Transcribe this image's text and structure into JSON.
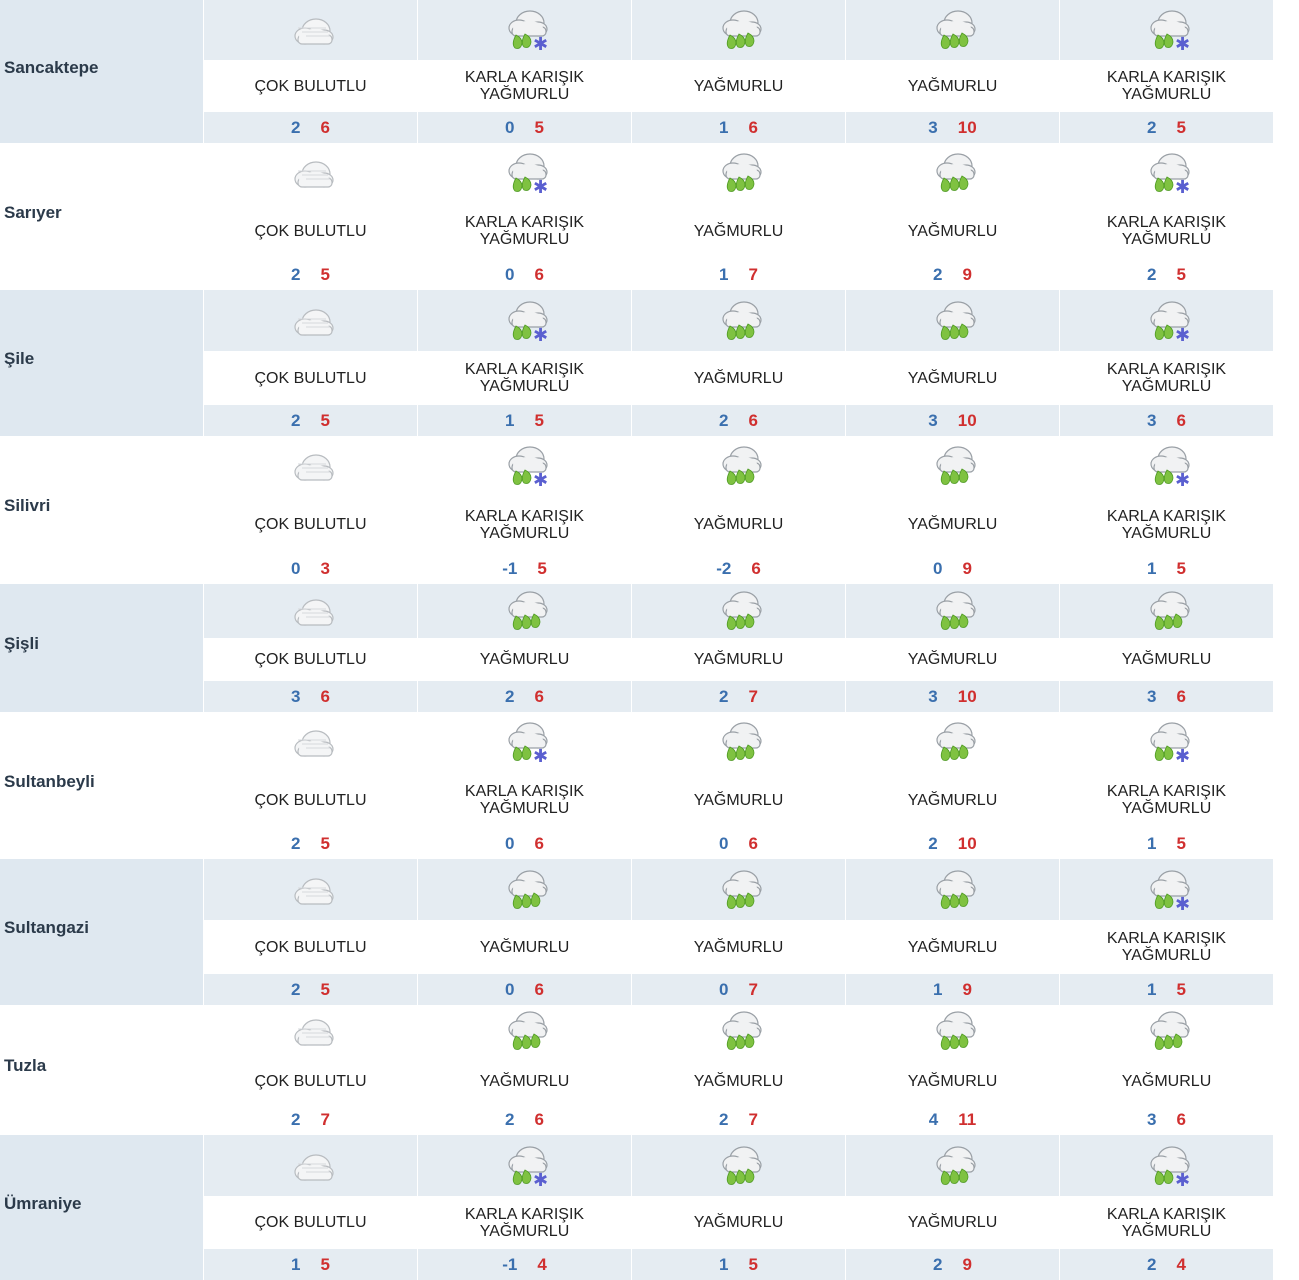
{
  "condition_labels": {
    "cloudy": "ÇOK BULUTLU",
    "rain": "YAĞMURLU",
    "sleet_line1": "KARLA KARIŞIK",
    "sleet_line2": "YAĞMURLU"
  },
  "icon_names": {
    "cloudy": "overcast-cloud-icon",
    "rain": "rain-cloud-icon",
    "sleet": "sleet-cloud-icon"
  },
  "colors": {
    "min_temp": "#3a6fae",
    "max_temp": "#d02f2f",
    "shade": "#e5ecf2",
    "district_bg": "#dfe8f0"
  },
  "districts": [
    {
      "name": "Sancaktepe",
      "days": [
        {
          "condition": "cloudy",
          "min": "2",
          "max": "6"
        },
        {
          "condition": "sleet",
          "min": "0",
          "max": "5"
        },
        {
          "condition": "rain",
          "min": "1",
          "max": "6"
        },
        {
          "condition": "rain",
          "min": "3",
          "max": "10"
        },
        {
          "condition": "sleet",
          "min": "2",
          "max": "5"
        }
      ]
    },
    {
      "name": "Sarıyer",
      "days": [
        {
          "condition": "cloudy",
          "min": "2",
          "max": "5"
        },
        {
          "condition": "sleet",
          "min": "0",
          "max": "6"
        },
        {
          "condition": "rain",
          "min": "1",
          "max": "7"
        },
        {
          "condition": "rain",
          "min": "2",
          "max": "9"
        },
        {
          "condition": "sleet",
          "min": "2",
          "max": "5"
        }
      ]
    },
    {
      "name": "Şile",
      "days": [
        {
          "condition": "cloudy",
          "min": "2",
          "max": "5"
        },
        {
          "condition": "sleet",
          "min": "1",
          "max": "5"
        },
        {
          "condition": "rain",
          "min": "2",
          "max": "6"
        },
        {
          "condition": "rain",
          "min": "3",
          "max": "10"
        },
        {
          "condition": "sleet",
          "min": "3",
          "max": "6"
        }
      ]
    },
    {
      "name": "Silivri",
      "days": [
        {
          "condition": "cloudy",
          "min": "0",
          "max": "3"
        },
        {
          "condition": "sleet",
          "min": "-1",
          "max": "5"
        },
        {
          "condition": "rain",
          "min": "-2",
          "max": "6"
        },
        {
          "condition": "rain",
          "min": "0",
          "max": "9"
        },
        {
          "condition": "sleet",
          "min": "1",
          "max": "5"
        }
      ]
    },
    {
      "name": "Şişli",
      "days": [
        {
          "condition": "cloudy",
          "min": "3",
          "max": "6"
        },
        {
          "condition": "rain",
          "min": "2",
          "max": "6"
        },
        {
          "condition": "rain",
          "min": "2",
          "max": "7"
        },
        {
          "condition": "rain",
          "min": "3",
          "max": "10"
        },
        {
          "condition": "rain",
          "min": "3",
          "max": "6"
        }
      ]
    },
    {
      "name": "Sultanbeyli",
      "days": [
        {
          "condition": "cloudy",
          "min": "2",
          "max": "5"
        },
        {
          "condition": "sleet",
          "min": "0",
          "max": "6"
        },
        {
          "condition": "rain",
          "min": "0",
          "max": "6"
        },
        {
          "condition": "rain",
          "min": "2",
          "max": "10"
        },
        {
          "condition": "sleet",
          "min": "1",
          "max": "5"
        }
      ]
    },
    {
      "name": "Sultangazi",
      "days": [
        {
          "condition": "cloudy",
          "min": "2",
          "max": "5"
        },
        {
          "condition": "rain",
          "min": "0",
          "max": "6"
        },
        {
          "condition": "rain",
          "min": "0",
          "max": "7"
        },
        {
          "condition": "rain",
          "min": "1",
          "max": "9"
        },
        {
          "condition": "sleet",
          "min": "1",
          "max": "5"
        }
      ]
    },
    {
      "name": "Tuzla",
      "days": [
        {
          "condition": "cloudy",
          "min": "2",
          "max": "7"
        },
        {
          "condition": "rain",
          "min": "2",
          "max": "6"
        },
        {
          "condition": "rain",
          "min": "2",
          "max": "7"
        },
        {
          "condition": "rain",
          "min": "4",
          "max": "11"
        },
        {
          "condition": "rain",
          "min": "3",
          "max": "6"
        }
      ]
    },
    {
      "name": "Ümraniye",
      "days": [
        {
          "condition": "cloudy",
          "min": "1",
          "max": "5"
        },
        {
          "condition": "sleet",
          "min": "-1",
          "max": "4"
        },
        {
          "condition": "rain",
          "min": "1",
          "max": "5"
        },
        {
          "condition": "rain",
          "min": "2",
          "max": "9"
        },
        {
          "condition": "sleet",
          "min": "2",
          "max": "4"
        }
      ]
    }
  ]
}
